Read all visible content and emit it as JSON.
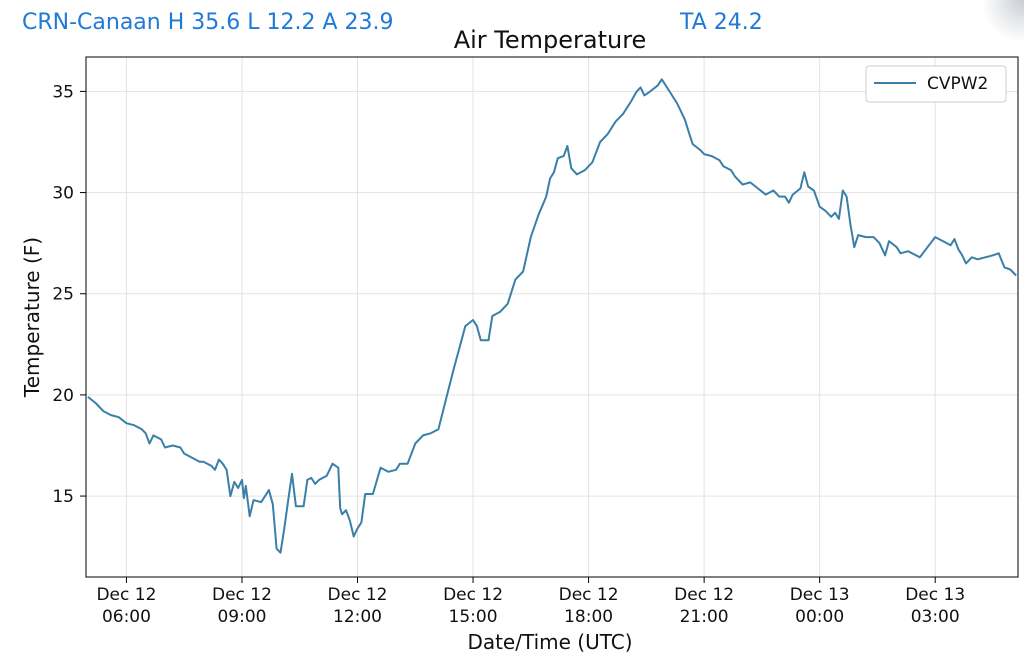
{
  "overlay": {
    "station_summary": "CRN-Canaan H 35.6 L 12.2 A 23.9",
    "ta_reading": "TA 24.2",
    "accent_color": "#1f7ad6"
  },
  "chart_data": {
    "type": "line",
    "title": "Air Temperature",
    "xlabel": "Date/Time (UTC)",
    "ylabel": "Temperature (F)",
    "ylim": [
      11,
      36.7
    ],
    "xlim": [
      4.95,
      29.15
    ],
    "grid": true,
    "legend_position": "top-right",
    "x_units": "hours since Dec 12 00:00 UTC",
    "x_ticks": [
      {
        "x": 6,
        "line1": "Dec 12",
        "line2": "06:00"
      },
      {
        "x": 9,
        "line1": "Dec 12",
        "line2": "09:00"
      },
      {
        "x": 12,
        "line1": "Dec 12",
        "line2": "12:00"
      },
      {
        "x": 15,
        "line1": "Dec 12",
        "line2": "15:00"
      },
      {
        "x": 18,
        "line1": "Dec 12",
        "line2": "18:00"
      },
      {
        "x": 21,
        "line1": "Dec 12",
        "line2": "21:00"
      },
      {
        "x": 24,
        "line1": "Dec 13",
        "line2": "00:00"
      },
      {
        "x": 27,
        "line1": "Dec 13",
        "line2": "03:00"
      }
    ],
    "y_ticks": [
      15,
      20,
      25,
      30,
      35
    ],
    "series": [
      {
        "name": "CVPW2",
        "color": "#3a7fa8",
        "points": [
          [
            5.0,
            19.9
          ],
          [
            5.2,
            19.6
          ],
          [
            5.4,
            19.2
          ],
          [
            5.6,
            19.0
          ],
          [
            5.8,
            18.9
          ],
          [
            6.0,
            18.6
          ],
          [
            6.2,
            18.5
          ],
          [
            6.4,
            18.3
          ],
          [
            6.5,
            18.1
          ],
          [
            6.6,
            17.6
          ],
          [
            6.7,
            18.0
          ],
          [
            6.9,
            17.8
          ],
          [
            7.0,
            17.4
          ],
          [
            7.2,
            17.5
          ],
          [
            7.4,
            17.4
          ],
          [
            7.5,
            17.1
          ],
          [
            7.7,
            16.9
          ],
          [
            7.9,
            16.7
          ],
          [
            8.0,
            16.7
          ],
          [
            8.2,
            16.5
          ],
          [
            8.3,
            16.3
          ],
          [
            8.4,
            16.8
          ],
          [
            8.5,
            16.6
          ],
          [
            8.6,
            16.3
          ],
          [
            8.7,
            15.0
          ],
          [
            8.8,
            15.7
          ],
          [
            8.9,
            15.4
          ],
          [
            9.0,
            15.8
          ],
          [
            9.05,
            14.9
          ],
          [
            9.1,
            15.5
          ],
          [
            9.2,
            14.0
          ],
          [
            9.3,
            14.8
          ],
          [
            9.5,
            14.7
          ],
          [
            9.6,
            15.0
          ],
          [
            9.7,
            15.3
          ],
          [
            9.8,
            14.6
          ],
          [
            9.9,
            12.4
          ],
          [
            10.0,
            12.2
          ],
          [
            10.1,
            13.4
          ],
          [
            10.2,
            14.8
          ],
          [
            10.3,
            16.1
          ],
          [
            10.4,
            14.5
          ],
          [
            10.6,
            14.5
          ],
          [
            10.7,
            15.8
          ],
          [
            10.8,
            15.9
          ],
          [
            10.9,
            15.6
          ],
          [
            11.0,
            15.8
          ],
          [
            11.2,
            16.0
          ],
          [
            11.35,
            16.6
          ],
          [
            11.5,
            16.4
          ],
          [
            11.55,
            14.4
          ],
          [
            11.6,
            14.1
          ],
          [
            11.7,
            14.3
          ],
          [
            11.8,
            13.8
          ],
          [
            11.9,
            13.0
          ],
          [
            12.0,
            13.4
          ],
          [
            12.1,
            13.7
          ],
          [
            12.2,
            15.1
          ],
          [
            12.4,
            15.1
          ],
          [
            12.6,
            16.4
          ],
          [
            12.8,
            16.2
          ],
          [
            13.0,
            16.3
          ],
          [
            13.1,
            16.6
          ],
          [
            13.3,
            16.6
          ],
          [
            13.5,
            17.6
          ],
          [
            13.7,
            18.0
          ],
          [
            13.9,
            18.1
          ],
          [
            14.1,
            18.3
          ],
          [
            14.3,
            19.8
          ],
          [
            14.5,
            21.3
          ],
          [
            14.7,
            22.7
          ],
          [
            14.8,
            23.4
          ],
          [
            15.0,
            23.7
          ],
          [
            15.1,
            23.4
          ],
          [
            15.2,
            22.7
          ],
          [
            15.4,
            22.7
          ],
          [
            15.5,
            23.9
          ],
          [
            15.7,
            24.1
          ],
          [
            15.9,
            24.5
          ],
          [
            16.1,
            25.7
          ],
          [
            16.3,
            26.1
          ],
          [
            16.5,
            27.8
          ],
          [
            16.7,
            28.9
          ],
          [
            16.9,
            29.8
          ],
          [
            17.0,
            30.7
          ],
          [
            17.1,
            31.0
          ],
          [
            17.2,
            31.7
          ],
          [
            17.35,
            31.8
          ],
          [
            17.45,
            32.3
          ],
          [
            17.55,
            31.2
          ],
          [
            17.7,
            30.9
          ],
          [
            17.9,
            31.1
          ],
          [
            18.1,
            31.5
          ],
          [
            18.3,
            32.5
          ],
          [
            18.5,
            32.9
          ],
          [
            18.7,
            33.5
          ],
          [
            18.9,
            33.9
          ],
          [
            19.1,
            34.5
          ],
          [
            19.25,
            35.0
          ],
          [
            19.35,
            35.2
          ],
          [
            19.45,
            34.8
          ],
          [
            19.6,
            35.0
          ],
          [
            19.8,
            35.3
          ],
          [
            19.9,
            35.6
          ],
          [
            20.1,
            35.0
          ],
          [
            20.3,
            34.4
          ],
          [
            20.5,
            33.6
          ],
          [
            20.6,
            33.0
          ],
          [
            20.7,
            32.4
          ],
          [
            20.9,
            32.1
          ],
          [
            21.0,
            31.9
          ],
          [
            21.2,
            31.8
          ],
          [
            21.4,
            31.6
          ],
          [
            21.5,
            31.3
          ],
          [
            21.7,
            31.1
          ],
          [
            21.8,
            30.8
          ],
          [
            22.0,
            30.4
          ],
          [
            22.2,
            30.5
          ],
          [
            22.4,
            30.2
          ],
          [
            22.6,
            29.9
          ],
          [
            22.8,
            30.1
          ],
          [
            22.95,
            29.8
          ],
          [
            23.1,
            29.8
          ],
          [
            23.2,
            29.5
          ],
          [
            23.3,
            29.9
          ],
          [
            23.5,
            30.2
          ],
          [
            23.6,
            31.0
          ],
          [
            23.7,
            30.3
          ],
          [
            23.85,
            30.1
          ],
          [
            24.0,
            29.3
          ],
          [
            24.15,
            29.1
          ],
          [
            24.3,
            28.8
          ],
          [
            24.4,
            29.0
          ],
          [
            24.5,
            28.7
          ],
          [
            24.6,
            30.1
          ],
          [
            24.7,
            29.8
          ],
          [
            24.8,
            28.4
          ],
          [
            24.9,
            27.3
          ],
          [
            25.0,
            27.9
          ],
          [
            25.2,
            27.8
          ],
          [
            25.4,
            27.8
          ],
          [
            25.55,
            27.5
          ],
          [
            25.7,
            26.9
          ],
          [
            25.8,
            27.6
          ],
          [
            26.0,
            27.3
          ],
          [
            26.1,
            27.0
          ],
          [
            26.3,
            27.1
          ],
          [
            26.5,
            26.9
          ],
          [
            26.6,
            26.8
          ],
          [
            26.8,
            27.3
          ],
          [
            27.0,
            27.8
          ],
          [
            27.2,
            27.6
          ],
          [
            27.4,
            27.4
          ],
          [
            27.5,
            27.7
          ],
          [
            27.6,
            27.2
          ],
          [
            27.7,
            26.9
          ],
          [
            27.8,
            26.5
          ],
          [
            27.95,
            26.8
          ],
          [
            28.1,
            26.7
          ],
          [
            28.3,
            26.8
          ],
          [
            28.5,
            26.9
          ],
          [
            28.65,
            27.0
          ],
          [
            28.8,
            26.3
          ],
          [
            28.95,
            26.2
          ],
          [
            29.1,
            25.9
          ]
        ]
      }
    ]
  }
}
